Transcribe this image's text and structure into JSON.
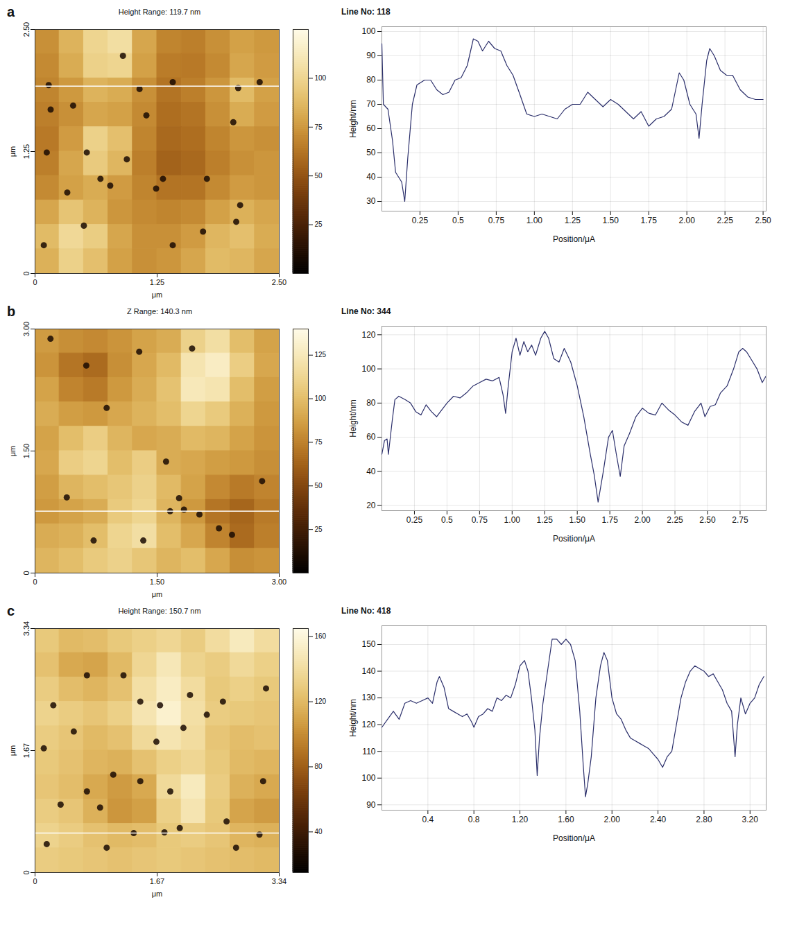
{
  "chart_data": [
    {
      "type": "heatmap",
      "panel_label": "a",
      "title": "Height Range: 119.7 nm",
      "x_label": "μm",
      "y_label": "μm",
      "xlim": [
        0,
        2.5
      ],
      "ylim": [
        0,
        2.5
      ],
      "xticks": [
        0,
        1.25,
        {
          "value": 2.5,
          "label": "2.50"
        }
      ],
      "yticks": [
        0,
        1.25,
        {
          "value": 2.5,
          "label": "2.50"
        }
      ],
      "cells": [
        [
          72,
          85,
          100,
          105,
          80,
          68,
          66,
          72,
          78,
          75
        ],
        [
          70,
          82,
          98,
          100,
          78,
          65,
          64,
          70,
          80,
          76
        ],
        [
          68,
          75,
          85,
          82,
          72,
          62,
          66,
          74,
          88,
          78
        ],
        [
          66,
          72,
          80,
          78,
          70,
          60,
          62,
          72,
          82,
          76
        ],
        [
          64,
          76,
          98,
          90,
          68,
          58,
          60,
          68,
          74,
          72
        ],
        [
          66,
          80,
          95,
          86,
          66,
          56,
          58,
          66,
          72,
          74
        ],
        [
          70,
          78,
          82,
          76,
          68,
          62,
          62,
          70,
          76,
          74
        ],
        [
          80,
          92,
          85,
          74,
          70,
          68,
          70,
          78,
          84,
          80
        ],
        [
          88,
          102,
          96,
          80,
          72,
          72,
          76,
          86,
          90,
          82
        ],
        [
          84,
          98,
          90,
          78,
          72,
          74,
          80,
          88,
          86,
          80
        ]
      ],
      "color_range": [
        0,
        125
      ],
      "color_ticks": [
        25,
        50,
        75,
        100
      ],
      "pits": {
        "x": [
          0.16,
          0.39,
          1.07,
          1.41,
          1.14,
          0.53,
          0.94,
          1.31,
          0.77,
          1.24,
          1.76,
          0.33,
          0.12,
          2.03,
          2.06,
          0.5,
          1.41,
          1.72,
          0.09,
          2.3,
          2.1,
          0.9,
          0.67,
          0.14,
          2.08
        ],
        "y": [
          1.68,
          1.72,
          1.89,
          1.96,
          1.62,
          1.24,
          1.17,
          0.97,
          0.9,
          0.87,
          0.97,
          0.83,
          1.24,
          1.55,
          0.53,
          0.49,
          0.29,
          0.43,
          0.29,
          1.96,
          0.7,
          2.23,
          0.97,
          1.93,
          1.9
        ]
      },
      "profile_y": 1.92
    },
    {
      "type": "line",
      "title": "Line No: 118",
      "x_label": "Position/μA",
      "y_label": "Height/nm",
      "xlim": [
        0,
        2.52
      ],
      "ylim": [
        26,
        102
      ],
      "xticks": [
        0.25,
        0.5,
        0.75,
        {
          "value": 1,
          "label": "1.00"
        },
        1.25,
        {
          "value": 1.5,
          "label": "1.50"
        },
        1.75,
        {
          "value": 2,
          "label": "2.00"
        },
        2.25,
        {
          "value": 2.5,
          "label": "2.50"
        }
      ],
      "yticks": [
        30,
        40,
        50,
        60,
        70,
        80,
        90,
        100
      ],
      "grid": true,
      "color": "#2b2f6b",
      "x": [
        0,
        0.01,
        0.04,
        0.07,
        0.09,
        0.11,
        0.13,
        0.15,
        0.17,
        0.2,
        0.23,
        0.28,
        0.32,
        0.36,
        0.4,
        0.44,
        0.48,
        0.52,
        0.56,
        0.6,
        0.63,
        0.66,
        0.7,
        0.74,
        0.78,
        0.82,
        0.86,
        0.9,
        0.95,
        1.0,
        1.05,
        1.1,
        1.15,
        1.2,
        1.25,
        1.3,
        1.35,
        1.4,
        1.45,
        1.5,
        1.55,
        1.6,
        1.65,
        1.7,
        1.75,
        1.8,
        1.85,
        1.9,
        1.95,
        1.98,
        2.02,
        2.06,
        2.08,
        2.1,
        2.13,
        2.15,
        2.18,
        2.22,
        2.26,
        2.3,
        2.35,
        2.4,
        2.45,
        2.5
      ],
      "values": [
        95,
        70,
        68,
        55,
        42,
        40,
        38,
        30,
        48,
        70,
        78,
        80,
        80,
        76,
        74,
        75,
        80,
        81,
        86,
        97,
        96,
        92,
        96,
        93,
        92,
        86,
        82,
        75,
        66,
        65,
        66,
        65,
        64,
        68,
        70,
        70,
        75,
        72,
        69,
        72,
        70,
        67,
        64,
        67,
        61,
        64,
        65,
        68,
        83,
        80,
        70,
        66,
        56,
        70,
        88,
        93,
        90,
        84,
        82,
        82,
        76,
        73,
        72,
        72
      ]
    },
    {
      "type": "heatmap",
      "panel_label": "b",
      "title": "Z Range: 140.3 nm",
      "x_label": "μm",
      "y_label": "μm",
      "xlim": [
        0,
        3
      ],
      "ylim": [
        0,
        3
      ],
      "xticks": [
        0,
        {
          "value": 1.5,
          "label": "1.50"
        },
        {
          "value": 3,
          "label": "3.00"
        }
      ],
      "yticks": [
        0,
        {
          "value": 1.5,
          "label": "1.50"
        },
        {
          "value": 3,
          "label": "3.00"
        }
      ],
      "cells": [
        [
          85,
          80,
          78,
          82,
          88,
          92,
          110,
          118,
          100,
          88
        ],
        [
          82,
          70,
          66,
          80,
          90,
          98,
          122,
          128,
          108,
          90
        ],
        [
          88,
          76,
          72,
          84,
          92,
          102,
          125,
          122,
          100,
          86
        ],
        [
          92,
          86,
          84,
          90,
          95,
          100,
          112,
          106,
          94,
          84
        ],
        [
          88,
          100,
          108,
          96,
          90,
          92,
          98,
          96,
          88,
          82
        ],
        [
          90,
          108,
          112,
          100,
          108,
          92,
          90,
          86,
          84,
          80
        ],
        [
          86,
          96,
          100,
          104,
          110,
          98,
          88,
          78,
          72,
          76
        ],
        [
          84,
          88,
          92,
          106,
          112,
          96,
          84,
          70,
          64,
          72
        ],
        [
          92,
          94,
          100,
          112,
          118,
          100,
          90,
          76,
          66,
          74
        ],
        [
          96,
          100,
          106,
          110,
          104,
          96,
          100,
          90,
          80,
          82
        ]
      ],
      "color_range": [
        0,
        140
      ],
      "color_ticks": [
        25,
        50,
        75,
        100,
        125
      ],
      "pits": {
        "x": [
          1.28,
          0.19,
          0.63,
          1.93,
          0.88,
          2.02,
          1.77,
          2.26,
          2.42,
          2.79,
          1.33,
          1.61,
          0.72,
          0.39,
          1.66,
          1.83
        ],
        "y": [
          2.72,
          2.88,
          2.55,
          2.76,
          2.03,
          0.72,
          0.92,
          0.55,
          0.47,
          1.13,
          0.4,
          1.37,
          0.4,
          0.93,
          0.76,
          0.78
        ]
      },
      "profile_y": 0.76
    },
    {
      "type": "line",
      "title": "Line No: 344",
      "x_label": "Position/μA",
      "y_label": "Height/nm",
      "xlim": [
        0,
        2.95
      ],
      "ylim": [
        17,
        125
      ],
      "xticks": [
        0.25,
        0.5,
        0.75,
        {
          "value": 1,
          "label": "1.00"
        },
        1.25,
        {
          "value": 1.5,
          "label": "1.50"
        },
        1.75,
        {
          "value": 2,
          "label": "2.00"
        },
        2.25,
        {
          "value": 2.5,
          "label": "2.50"
        },
        2.75
      ],
      "yticks": [
        20,
        40,
        60,
        80,
        100,
        120
      ],
      "grid": true,
      "color": "#2b2f6b",
      "x": [
        0,
        0.02,
        0.04,
        0.05,
        0.08,
        0.1,
        0.13,
        0.18,
        0.22,
        0.26,
        0.3,
        0.34,
        0.38,
        0.42,
        0.46,
        0.5,
        0.55,
        0.6,
        0.65,
        0.7,
        0.75,
        0.8,
        0.85,
        0.9,
        0.93,
        0.95,
        0.97,
        1.0,
        1.03,
        1.06,
        1.09,
        1.12,
        1.15,
        1.18,
        1.22,
        1.25,
        1.28,
        1.32,
        1.36,
        1.4,
        1.45,
        1.5,
        1.55,
        1.6,
        1.63,
        1.66,
        1.7,
        1.74,
        1.77,
        1.8,
        1.83,
        1.86,
        1.9,
        1.95,
        2.0,
        2.05,
        2.1,
        2.15,
        2.2,
        2.25,
        2.3,
        2.35,
        2.4,
        2.45,
        2.48,
        2.52,
        2.56,
        2.6,
        2.65,
        2.7,
        2.74,
        2.77,
        2.8,
        2.84,
        2.88,
        2.92,
        2.95
      ],
      "values": [
        50,
        58,
        59,
        50,
        70,
        82,
        84,
        82,
        80,
        75,
        73,
        79,
        75,
        72,
        76,
        80,
        84,
        83,
        86,
        90,
        92,
        94,
        93,
        95,
        85,
        74,
        90,
        110,
        118,
        108,
        116,
        110,
        114,
        108,
        118,
        122,
        118,
        106,
        104,
        112,
        104,
        90,
        72,
        50,
        38,
        22,
        40,
        60,
        64,
        50,
        37,
        55,
        62,
        72,
        77,
        74,
        73,
        80,
        76,
        73,
        69,
        67,
        75,
        80,
        72,
        78,
        79,
        86,
        90,
        100,
        110,
        112,
        110,
        105,
        100,
        92,
        96
      ]
    },
    {
      "type": "heatmap",
      "panel_label": "c",
      "title": "Height Range: 150.7 nm",
      "x_label": "μm",
      "y_label": "μm",
      "xlim": [
        0,
        3.34
      ],
      "ylim": [
        0,
        3.34
      ],
      "xticks": [
        0,
        1.67,
        3.34
      ],
      "yticks": [
        0,
        1.67,
        3.34
      ],
      "cells": [
        [
          128,
          120,
          122,
          128,
          132,
          136,
          130,
          140,
          150,
          140
        ],
        [
          124,
          112,
          110,
          120,
          136,
          148,
          134,
          130,
          138,
          132
        ],
        [
          130,
          122,
          118,
          124,
          142,
          152,
          140,
          128,
          132,
          128
        ],
        [
          134,
          130,
          126,
          132,
          146,
          156,
          142,
          130,
          128,
          126
        ],
        [
          130,
          126,
          120,
          124,
          138,
          146,
          140,
          126,
          122,
          124
        ],
        [
          128,
          124,
          118,
          116,
          124,
          132,
          136,
          128,
          120,
          118
        ],
        [
          126,
          122,
          112,
          106,
          112,
          138,
          150,
          130,
          116,
          112
        ],
        [
          130,
          126,
          116,
          104,
          108,
          132,
          146,
          128,
          110,
          106
        ],
        [
          134,
          130,
          124,
          120,
          122,
          128,
          130,
          126,
          118,
          116
        ],
        [
          130,
          128,
          126,
          124,
          126,
          128,
          126,
          124,
          122,
          120
        ]
      ],
      "color_range": [
        15,
        165
      ],
      "color_ticks": [
        40,
        80,
        120,
        160
      ],
      "pits": {
        "x": [
          0.71,
          1.21,
          1.71,
          1.44,
          2.12,
          2.57,
          2.35,
          2.03,
          1.66,
          1.44,
          1.07,
          0.71,
          0.35,
          1.85,
          2.62,
          1.98,
          0.16,
          0.98,
          2.75,
          0.53,
          0.12,
          3.12,
          3.16,
          0.89,
          0.25,
          1.35,
          1.77,
          3.07
        ],
        "y": [
          2.7,
          2.7,
          2.29,
          2.34,
          2.43,
          2.34,
          2.16,
          1.98,
          1.79,
          1.25,
          1.34,
          1.11,
          0.93,
          1.11,
          0.7,
          0.61,
          0.39,
          0.34,
          0.34,
          1.93,
          1.7,
          1.25,
          2.52,
          0.89,
          2.29,
          0.54,
          0.55,
          0.52
        ]
      },
      "profile_y": 0.54
    },
    {
      "type": "line",
      "title": "Line No: 418",
      "x_label": "Position/μA",
      "y_label": "Height/nm",
      "xlim": [
        0,
        3.34
      ],
      "ylim": [
        88,
        157
      ],
      "xticks": [
        0.4,
        0.8,
        {
          "value": 1.2,
          "label": "1.20"
        },
        {
          "value": 1.6,
          "label": "1.60"
        },
        {
          "value": 2,
          "label": "2.00"
        },
        {
          "value": 2.4,
          "label": "2.40"
        },
        {
          "value": 2.8,
          "label": "2.80"
        },
        {
          "value": 3.2,
          "label": "3.20"
        }
      ],
      "yticks": [
        90,
        100,
        110,
        120,
        130,
        140,
        150
      ],
      "grid": true,
      "color": "#2b2f6b",
      "x": [
        0,
        0.05,
        0.1,
        0.15,
        0.2,
        0.25,
        0.3,
        0.35,
        0.4,
        0.44,
        0.48,
        0.5,
        0.54,
        0.58,
        0.62,
        0.66,
        0.7,
        0.74,
        0.78,
        0.8,
        0.84,
        0.88,
        0.92,
        0.96,
        1.0,
        1.04,
        1.08,
        1.12,
        1.16,
        1.2,
        1.24,
        1.27,
        1.3,
        1.33,
        1.35,
        1.37,
        1.4,
        1.44,
        1.48,
        1.52,
        1.56,
        1.6,
        1.64,
        1.68,
        1.72,
        1.75,
        1.77,
        1.79,
        1.82,
        1.86,
        1.9,
        1.93,
        1.96,
        2.0,
        2.04,
        2.08,
        2.12,
        2.16,
        2.2,
        2.24,
        2.28,
        2.32,
        2.36,
        2.4,
        2.44,
        2.48,
        2.52,
        2.56,
        2.6,
        2.64,
        2.68,
        2.72,
        2.76,
        2.8,
        2.84,
        2.88,
        2.92,
        2.96,
        3.0,
        3.04,
        3.07,
        3.09,
        3.12,
        3.16,
        3.2,
        3.24,
        3.28,
        3.32
      ],
      "values": [
        119,
        122,
        125,
        122,
        128,
        129,
        128,
        129,
        130,
        128,
        136,
        138,
        134,
        126,
        125,
        124,
        123,
        124,
        121,
        119,
        123,
        124,
        126,
        125,
        130,
        129,
        131,
        130,
        135,
        142,
        144,
        140,
        130,
        118,
        101,
        115,
        128,
        140,
        152,
        152,
        150,
        152,
        150,
        144,
        125,
        105,
        93,
        98,
        108,
        130,
        142,
        147,
        144,
        130,
        124,
        122,
        118,
        115,
        114,
        113,
        112,
        111,
        109,
        107,
        104,
        108,
        110,
        120,
        130,
        136,
        140,
        142,
        141,
        140,
        138,
        139,
        136,
        133,
        128,
        125,
        108,
        120,
        130,
        124,
        128,
        130,
        135,
        138
      ]
    }
  ]
}
